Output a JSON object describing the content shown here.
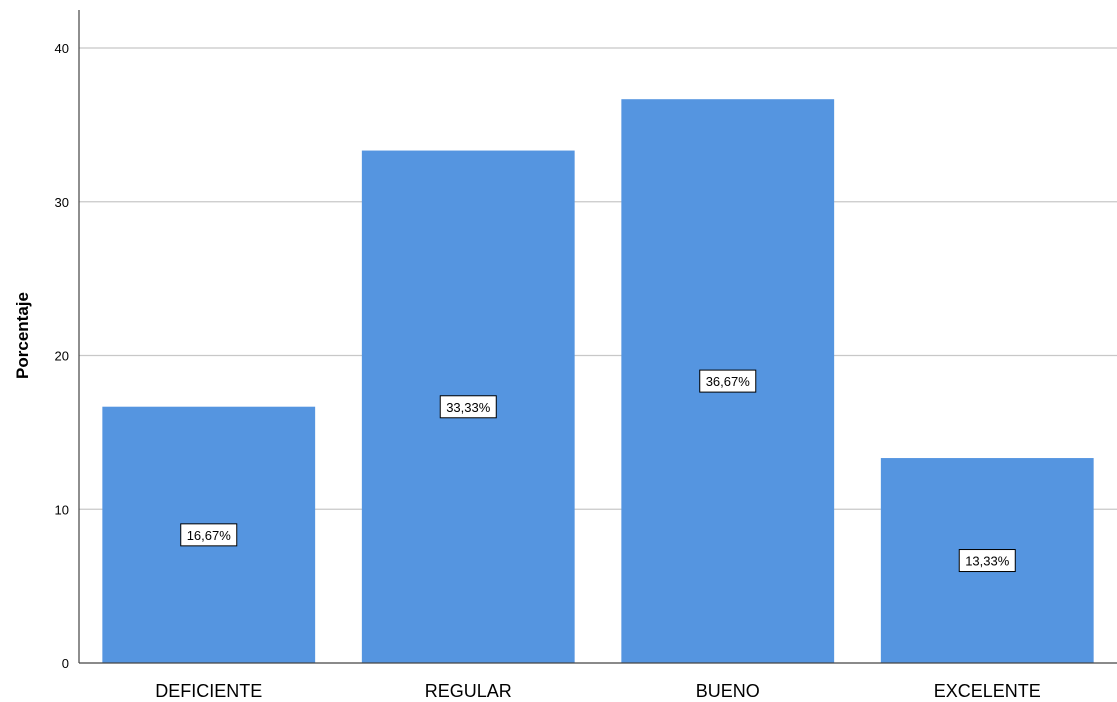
{
  "chart_data": {
    "type": "bar",
    "categories": [
      "DEFICIENTE",
      "REGULAR",
      "BUENO",
      "EXCELENTE"
    ],
    "values": [
      16.67,
      33.33,
      36.67,
      13.33
    ],
    "data_labels": [
      "16,67%",
      "33,33%",
      "36,67%",
      "13,33%"
    ],
    "title": "",
    "xlabel": "",
    "ylabel": "Porcentaje",
    "ylim": [
      0,
      40
    ],
    "yticks": [
      0,
      10,
      20,
      30,
      40
    ],
    "ytick_labels": [
      "0",
      "10",
      "20",
      "30",
      "40"
    ],
    "grid": "horizontal",
    "bar_color": "#5595e0",
    "gridline_color": "#c8c8c8",
    "axis_color": "#444444"
  }
}
